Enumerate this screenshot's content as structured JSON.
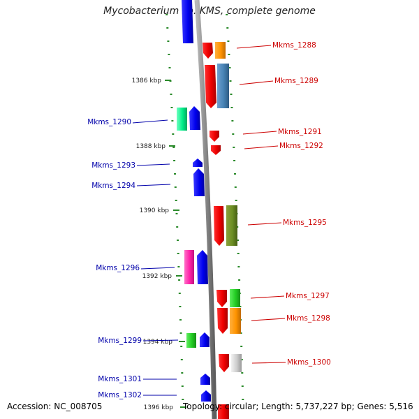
{
  "title": "Mycobacterium sp. KMS, complete genome",
  "footer": {
    "accession": "Accession: NC_008705",
    "topology": "Topology: circular; Length: 5,737,227 bp; Genes: 5,516"
  },
  "colors": {
    "backbone": "#8a8a8a",
    "tick": "#2a8a2a",
    "forward_label": "#cc0000",
    "reverse_label": "#0000aa"
  },
  "scale_labels": [
    "1386 kbp",
    "1388 kbp",
    "1390 kbp",
    "1392 kbp",
    "1394 kbp",
    "1396 kbp"
  ],
  "forward_genes": [
    {
      "id": "Mkms_1288"
    },
    {
      "id": "Mkms_1289"
    },
    {
      "id": "Mkms_1291"
    },
    {
      "id": "Mkms_1292"
    },
    {
      "id": "Mkms_1295"
    },
    {
      "id": "Mkms_1297"
    },
    {
      "id": "Mkms_1298"
    },
    {
      "id": "Mkms_1300"
    }
  ],
  "reverse_genes": [
    {
      "id": "Mkms_1290"
    },
    {
      "id": "Mkms_1293"
    },
    {
      "id": "Mkms_1294"
    },
    {
      "id": "Mkms_1296"
    },
    {
      "id": "Mkms_1299"
    },
    {
      "id": "Mkms_1301"
    },
    {
      "id": "Mkms_1302"
    }
  ]
}
